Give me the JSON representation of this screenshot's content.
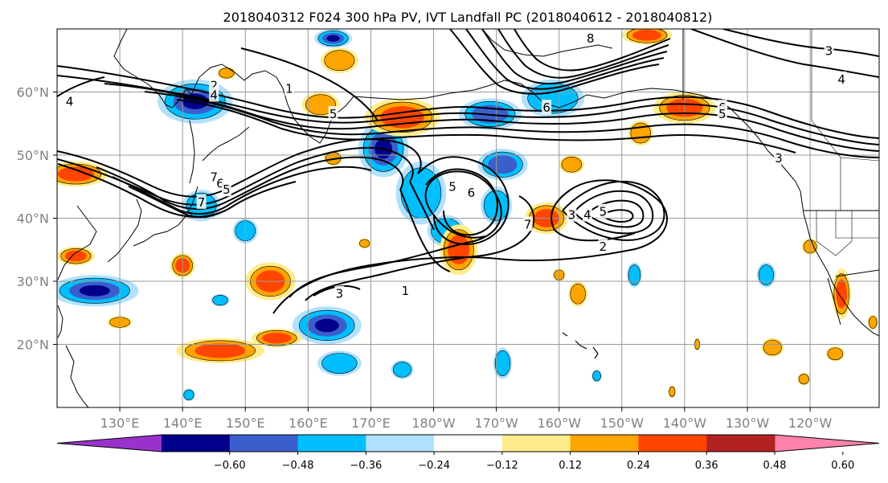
{
  "chart_data": {
    "type": "heatmap",
    "title": "2018040312 F024 300 hPa PV, IVT Landfall PC (2018040612 - 2018040812)",
    "projection": "latlon",
    "map": {
      "lon_min": 120,
      "lon_max": 251,
      "lat_min": 10,
      "lat_max": 70
    },
    "grid": true,
    "x_ticks": [
      {
        "lon": 130,
        "label": "130°E"
      },
      {
        "lon": 140,
        "label": "140°E"
      },
      {
        "lon": 150,
        "label": "150°E"
      },
      {
        "lon": 160,
        "label": "160°E"
      },
      {
        "lon": 170,
        "label": "170°E"
      },
      {
        "lon": 180,
        "label": "180°W"
      },
      {
        "lon": 190,
        "label": "170°W"
      },
      {
        "lon": 200,
        "label": "160°W"
      },
      {
        "lon": 210,
        "label": "150°W"
      },
      {
        "lon": 220,
        "label": "140°W"
      },
      {
        "lon": 230,
        "label": "130°W"
      },
      {
        "lon": 240,
        "label": "120°W"
      }
    ],
    "y_ticks": [
      {
        "lat": 20,
        "label": "20°N"
      },
      {
        "lat": 30,
        "label": "30°N"
      },
      {
        "lat": 40,
        "label": "40°N"
      },
      {
        "lat": 50,
        "label": "50°N"
      },
      {
        "lat": 60,
        "label": "60°N"
      }
    ],
    "colorbar": {
      "orientation": "horizontal",
      "extend": "both",
      "colors": [
        "#9932CC",
        "#00008B",
        "#3A5FCD",
        "#00BFFF",
        "#B0E2FF",
        "#FFFFFF",
        "#FFEC8B",
        "#FFA500",
        "#FF4500",
        "#B22222",
        "#FF82AB"
      ],
      "tick_labels": [
        "−0.60",
        "−0.48",
        "−0.36",
        "−0.24",
        "−0.12",
        "0.12",
        "0.24",
        "0.36",
        "0.48",
        "0.60"
      ]
    },
    "shaded_features": [
      {
        "lon": 142,
        "lat": 58.5,
        "rx": 6,
        "ry": 3.5,
        "value": -0.5
      },
      {
        "lon": 164,
        "lat": 68.5,
        "rx": 3,
        "ry": 1.5,
        "value": -0.5
      },
      {
        "lon": 126,
        "lat": 28.5,
        "rx": 7,
        "ry": 2.5,
        "value": -0.5
      },
      {
        "lon": 172,
        "lat": 51,
        "rx": 4,
        "ry": 4.5,
        "value": -0.55
      },
      {
        "lon": 182,
        "lat": 38,
        "rx": 3,
        "ry": 2.5,
        "value": -0.3
      },
      {
        "lon": 178,
        "lat": 44,
        "rx": 4,
        "ry": 5,
        "value": -0.3
      },
      {
        "lon": 189,
        "lat": 56.5,
        "rx": 5,
        "ry": 2.5,
        "value": -0.4
      },
      {
        "lon": 191,
        "lat": 48.5,
        "rx": 4,
        "ry": 2.5,
        "value": -0.4
      },
      {
        "lon": 199,
        "lat": 59,
        "rx": 5,
        "ry": 3,
        "value": -0.3
      },
      {
        "lon": 190,
        "lat": 42,
        "rx": 2.5,
        "ry": 3,
        "value": -0.3
      },
      {
        "lon": 143,
        "lat": 42,
        "rx": 3,
        "ry": 2.5,
        "value": -0.3
      },
      {
        "lon": 150,
        "lat": 38,
        "rx": 2,
        "ry": 2,
        "value": -0.3
      },
      {
        "lon": 163,
        "lat": 23,
        "rx": 5.5,
        "ry": 3,
        "value": -0.5
      },
      {
        "lon": 146,
        "lat": 27,
        "rx": 1.5,
        "ry": 1,
        "value": -0.3
      },
      {
        "lon": 165,
        "lat": 17,
        "rx": 3.5,
        "ry": 2,
        "value": -0.3
      },
      {
        "lon": 191,
        "lat": 17,
        "rx": 1.5,
        "ry": 2.5,
        "value": -0.3
      },
      {
        "lon": 206,
        "lat": 15,
        "rx": 0.8,
        "ry": 1,
        "value": -0.3
      },
      {
        "lon": 212,
        "lat": 31,
        "rx": 1.2,
        "ry": 2,
        "value": -0.3
      },
      {
        "lon": 233,
        "lat": 31,
        "rx": 1.5,
        "ry": 2,
        "value": -0.3
      },
      {
        "lon": 141,
        "lat": 12,
        "rx": 1,
        "ry": 1,
        "value": -0.3
      },
      {
        "lon": 175,
        "lat": 16,
        "rx": 1.8,
        "ry": 1.5,
        "value": -0.3
      },
      {
        "lon": 123,
        "lat": 47,
        "rx": 5,
        "ry": 2,
        "value": 0.42
      },
      {
        "lon": 123,
        "lat": 34,
        "rx": 3,
        "ry": 1.5,
        "value": 0.42
      },
      {
        "lon": 140,
        "lat": 32.5,
        "rx": 2,
        "ry": 2,
        "value": 0.42
      },
      {
        "lon": 154,
        "lat": 30,
        "rx": 4,
        "ry": 3,
        "value": 0.42
      },
      {
        "lon": 146,
        "lat": 19,
        "rx": 7,
        "ry": 2,
        "value": 0.42
      },
      {
        "lon": 155,
        "lat": 21,
        "rx": 4,
        "ry": 1.5,
        "value": 0.42
      },
      {
        "lon": 130,
        "lat": 23.5,
        "rx": 2,
        "ry": 1,
        "value": 0.3
      },
      {
        "lon": 165,
        "lat": 65,
        "rx": 3,
        "ry": 2,
        "value": 0.3
      },
      {
        "lon": 162,
        "lat": 58,
        "rx": 3,
        "ry": 2,
        "value": 0.3
      },
      {
        "lon": 175,
        "lat": 56,
        "rx": 6,
        "ry": 3,
        "value": 0.42
      },
      {
        "lon": 184,
        "lat": 35,
        "rx": 3,
        "ry": 4,
        "value": 0.36
      },
      {
        "lon": 198,
        "lat": 40,
        "rx": 3.5,
        "ry": 2.5,
        "value": 0.45
      },
      {
        "lon": 220,
        "lat": 57.5,
        "rx": 5,
        "ry": 2.5,
        "value": 0.45
      },
      {
        "lon": 213,
        "lat": 53.5,
        "rx": 2,
        "ry": 2,
        "value": 0.3
      },
      {
        "lon": 214,
        "lat": 69,
        "rx": 4,
        "ry": 1.5,
        "value": 0.45
      },
      {
        "lon": 202,
        "lat": 48.5,
        "rx": 2,
        "ry": 1.5,
        "value": 0.3
      },
      {
        "lon": 245,
        "lat": 28,
        "rx": 1.5,
        "ry": 4,
        "value": 0.42
      },
      {
        "lon": 234,
        "lat": 19.5,
        "rx": 1.8,
        "ry": 1.5,
        "value": 0.3
      },
      {
        "lon": 244,
        "lat": 18.5,
        "rx": 1.5,
        "ry": 1.2,
        "value": 0.3
      },
      {
        "lon": 239,
        "lat": 14.5,
        "rx": 1,
        "ry": 1,
        "value": 0.3
      },
      {
        "lon": 240,
        "lat": 35.5,
        "rx": 1.3,
        "ry": 1.3,
        "value": 0.3
      },
      {
        "lon": 203,
        "lat": 28,
        "rx": 1.5,
        "ry": 2,
        "value": 0.3
      },
      {
        "lon": 200,
        "lat": 31,
        "rx": 1,
        "ry": 1,
        "value": 0.3
      },
      {
        "lon": 169,
        "lat": 36,
        "rx": 1,
        "ry": 0.8,
        "value": 0.3
      },
      {
        "lon": 164,
        "lat": 49.5,
        "rx": 1.5,
        "ry": 1.2,
        "value": 0.3
      },
      {
        "lon": 147,
        "lat": 63,
        "rx": 1.5,
        "ry": 1,
        "value": 0.3
      },
      {
        "lon": 222,
        "lat": 20,
        "rx": 0.5,
        "ry": 1,
        "value": 0.3
      },
      {
        "lon": 218,
        "lat": 12.5,
        "rx": 0.6,
        "ry": 1,
        "value": 0.3
      },
      {
        "lon": 250,
        "lat": 23.5,
        "rx": 0.8,
        "ry": 1.2,
        "value": 0.3
      }
    ],
    "contour_labels": [
      {
        "text": "4",
        "lon": 122,
        "lat": 58.5
      },
      {
        "text": "2",
        "lon": 145,
        "lat": 61
      },
      {
        "text": "4",
        "lon": 145,
        "lat": 59.5
      },
      {
        "text": "1",
        "lon": 157,
        "lat": 60.5
      },
      {
        "text": "5",
        "lon": 164,
        "lat": 56.5
      },
      {
        "text": "7",
        "lon": 145,
        "lat": 46.5
      },
      {
        "text": "6",
        "lon": 146,
        "lat": 45.5
      },
      {
        "text": "5",
        "lon": 147,
        "lat": 44.5
      },
      {
        "text": "7",
        "lon": 143,
        "lat": 42.5
      },
      {
        "text": "8",
        "lon": 205,
        "lat": 68.5
      },
      {
        "text": "6",
        "lon": 198,
        "lat": 57.5
      },
      {
        "text": "6",
        "lon": 226,
        "lat": 57.5
      },
      {
        "text": "5",
        "lon": 226,
        "lat": 56.5
      },
      {
        "text": "3",
        "lon": 235,
        "lat": 49.5
      },
      {
        "text": "4",
        "lon": 245,
        "lat": 62
      },
      {
        "text": "3",
        "lon": 243,
        "lat": 66.5
      },
      {
        "text": "5",
        "lon": 183,
        "lat": 45
      },
      {
        "text": "6",
        "lon": 186,
        "lat": 44
      },
      {
        "text": "7",
        "lon": 195,
        "lat": 39
      },
      {
        "text": "3",
        "lon": 202,
        "lat": 40.5
      },
      {
        "text": "4",
        "lon": 204.5,
        "lat": 40.5
      },
      {
        "text": "5",
        "lon": 207,
        "lat": 41
      },
      {
        "text": "2",
        "lon": 207,
        "lat": 35.5
      },
      {
        "text": "3",
        "lon": 165,
        "lat": 28
      },
      {
        "text": "1",
        "lon": 175.5,
        "lat": 28.5
      }
    ]
  }
}
